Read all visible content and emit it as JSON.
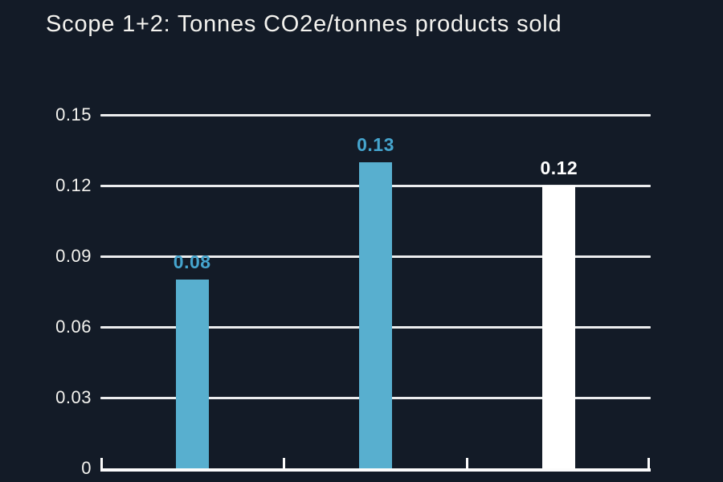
{
  "title": "Scope 1+2: Tonnes CO2e/tonnes products sold",
  "colors": {
    "background": "#131B27",
    "bar_blue": "#58AFCF",
    "bar_white": "#FFFFFF",
    "value_label_blue": "#45A5CE",
    "value_label_white": "#FFFFFF",
    "gridline": "#ECEDEE",
    "axis": "#FCFCFC",
    "text": "#F4F3EF"
  },
  "chart_data": {
    "type": "bar",
    "title": "Scope 1+2: Tonnes CO2e/tonnes products sold",
    "categories": [
      "",
      "",
      ""
    ],
    "values": [
      0.08,
      0.13,
      0.12
    ],
    "value_labels": [
      "0.08",
      "0.13",
      "0.12"
    ],
    "bar_colors": [
      "#58AFCF",
      "#58AFCF",
      "#FFFFFF"
    ],
    "label_colors": [
      "#45A5CE",
      "#45A5CE",
      "#FFFFFF"
    ],
    "xlabel": "",
    "ylabel": "",
    "ylim": [
      0,
      0.15
    ],
    "yticks": [
      0,
      0.03,
      0.06,
      0.09,
      0.12,
      0.15
    ],
    "ytick_labels": [
      "0",
      "0.03",
      "0.06",
      "0.09",
      "0.12",
      "0.15"
    ],
    "grid": "horizontal",
    "legend": false
  }
}
